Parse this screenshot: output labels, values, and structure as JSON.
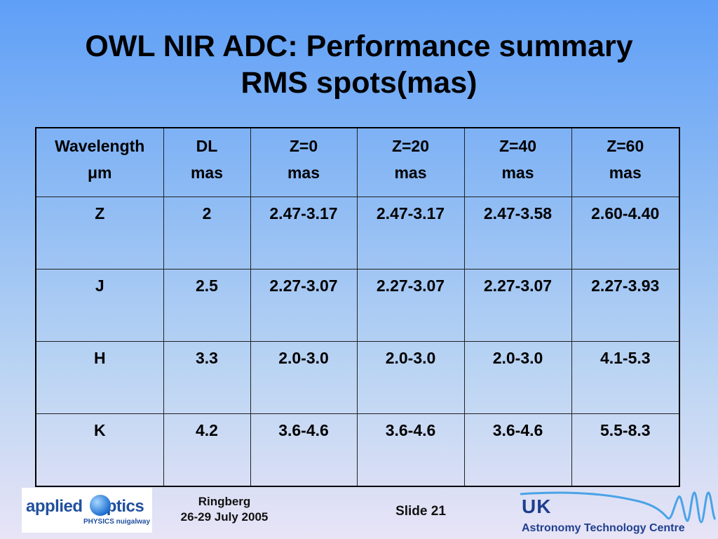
{
  "title": {
    "line1": "OWL NIR  ADC:  Performance summary",
    "line2": "RMS spots(mas)"
  },
  "table": {
    "headers": [
      {
        "line1": "Wavelength",
        "line2": "μm"
      },
      {
        "line1": "DL",
        "line2": "mas"
      },
      {
        "line1": "Z=0",
        "line2": "mas"
      },
      {
        "line1": "Z=20",
        "line2": "mas"
      },
      {
        "line1": "Z=40",
        "line2": "mas"
      },
      {
        "line1": "Z=60",
        "line2": "mas"
      }
    ],
    "rows": [
      [
        "Z",
        "2",
        "2.47-3.17",
        "2.47-3.17",
        "2.47-3.58",
        "2.60-4.40"
      ],
      [
        "J",
        "2.5",
        "2.27-3.07",
        "2.27-3.07",
        "2.27-3.07",
        "2.27-3.93"
      ],
      [
        "H",
        "3.3",
        "2.0-3.0",
        "2.0-3.0",
        "2.0-3.0",
        "4.1-5.3"
      ],
      [
        "K",
        "4.2",
        "3.6-4.6",
        "3.6-4.6",
        "3.6-4.6",
        "5.5-8.3"
      ]
    ]
  },
  "footer": {
    "logo_left": {
      "word1": "applied",
      "word2": "ptics",
      "sub": "PHYSICS nuigalway"
    },
    "place": "Ringberg",
    "date": "26-29 July 2005",
    "slide": "Slide 21",
    "logo_right": {
      "uk": "UK",
      "name": "Astronomy Technology Centre"
    }
  },
  "colors": {
    "bg_top": "#5f9ff7",
    "bg_bottom": "#e8e4f6",
    "logo_blue": "#1f3f8e"
  }
}
